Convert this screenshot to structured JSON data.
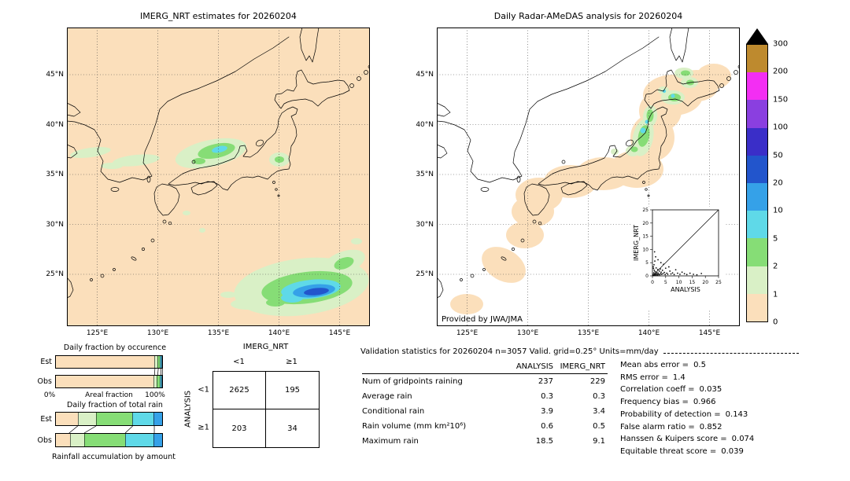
{
  "left_map": {
    "title": "IMERG_NRT estimates for 20260204",
    "x_ticks": [
      "125°E",
      "130°E",
      "135°E",
      "140°E",
      "145°E"
    ],
    "y_ticks": [
      "45°N",
      "40°N",
      "35°N",
      "30°N",
      "25°N"
    ]
  },
  "right_map": {
    "title": "Daily Radar-AMeDAS analysis for 20260204",
    "credit": "Provided by JWA/JMA",
    "x_ticks": [
      "125°E",
      "130°E",
      "135°E",
      "140°E",
      "145°E"
    ],
    "y_ticks": [
      "45°N",
      "40°N",
      "35°N",
      "30°N",
      "25°N"
    ]
  },
  "colorbar": {
    "labels_top_to_bottom": [
      "300",
      "200",
      "150",
      "100",
      "50",
      "20",
      "10",
      "5",
      "2",
      "1",
      "0"
    ],
    "colors_bottom_to_top": [
      "#FBDFBB",
      "#D9F0C6",
      "#86DD76",
      "#5FD9E8",
      "#35A1E8",
      "#2255CC",
      "#3A2EC8",
      "#8A3FE0",
      "#F32EF3",
      "#BE8A2E"
    ],
    "overflow_color": "#000000",
    "units": "mm/day"
  },
  "inset": {
    "xlabel": "ANALYSIS",
    "ylabel": "IMERG_NRT"
  },
  "occurrence": {
    "title": "Daily fraction by occurence",
    "row_labels": [
      "Est",
      "Obs"
    ],
    "axis_left": "0%",
    "axis_label": "Areal fraction",
    "axis_right": "100%"
  },
  "total_rain": {
    "title": "Daily fraction of total rain",
    "row_labels": [
      "Est",
      "Obs"
    ],
    "caption": "Rainfall accumulation by amount"
  },
  "contingency": {
    "matrix_col_title": "IMERG_NRT",
    "matrix_row_title": "ANALYSIS",
    "col_labels": [
      "<1",
      "≥1"
    ],
    "row_labels": [
      "<1",
      "≥1"
    ],
    "values": [
      [
        "2625",
        "195"
      ],
      [
        "203",
        "34"
      ]
    ]
  },
  "stats": {
    "title": "Validation statistics for 20260204  n=3057 Valid. grid=0.25° Units=mm/day",
    "col_headers": [
      "ANALYSIS",
      "IMERG_NRT"
    ],
    "rows": [
      {
        "label": "Num of gridpoints raining",
        "analysis": "237",
        "imerg": "229"
      },
      {
        "label": "Average rain",
        "analysis": "0.3",
        "imerg": "0.3"
      },
      {
        "label": "Conditional rain",
        "analysis": "3.9",
        "imerg": "3.4"
      },
      {
        "label": "Rain volume (mm km²10⁶)",
        "analysis": "0.6",
        "imerg": "0.5"
      },
      {
        "label": "Maximum rain",
        "analysis": "18.5",
        "imerg": "9.1"
      }
    ],
    "metrics": [
      {
        "label": "Mean abs error =",
        "value": "0.5"
      },
      {
        "label": "RMS error =",
        "value": "1.4"
      },
      {
        "label": "Correlation coeff =",
        "value": "0.035"
      },
      {
        "label": "Frequency bias =",
        "value": "0.966"
      },
      {
        "label": "Probability of detection =",
        "value": "0.143"
      },
      {
        "label": "False alarm ratio =",
        "value": "0.852"
      },
      {
        "label": "Hanssen & Kuipers score =",
        "value": "0.074"
      },
      {
        "label": "Equitable threat score =",
        "value": "0.039"
      }
    ]
  },
  "chart_data": [
    {
      "type": "heatmap",
      "title": "IMERG_NRT estimates for 20260204",
      "units": "mm/day",
      "levels": [
        0,
        1,
        2,
        5,
        10,
        20,
        50,
        100,
        150,
        200,
        300
      ],
      "lon_range": [
        "122.5E",
        "147.5E"
      ],
      "lat_range": [
        "20N",
        "49.5N"
      ],
      "features": [
        {
          "area": "Sea of Japan / central Honshu 133-137E 36-38N",
          "intensity_mm_day": "1-10"
        },
        {
          "area": "west of Korea Strait 123-131E 36-38N",
          "intensity_mm_day": "1-2"
        },
        {
          "area": "Kanto 140E 36.5N",
          "intensity_mm_day": "2-5"
        },
        {
          "area": "subtropical band SE of Japan 137-147E 21-26N",
          "intensity_mm_day": "2-50"
        }
      ]
    },
    {
      "type": "heatmap",
      "title": "Daily Radar-AMeDAS analysis for 20260204",
      "units": "mm/day",
      "coverage": "radar swath along Japanese archipelago, 0 mm/day background",
      "features": [
        {
          "area": "NW Tohoku coast 138.5-140.5E 37-41.5N",
          "intensity_mm_day": "1-20"
        },
        {
          "area": "W and N Hokkaido 140-145E 42-45.5N",
          "intensity_mm_day": "1-10"
        }
      ]
    },
    {
      "type": "scatter",
      "xlabel": "ANALYSIS",
      "ylabel": "IMERG_NRT",
      "xlim": [
        0,
        25
      ],
      "ylim": [
        0,
        25
      ],
      "tick_values": [
        0,
        5,
        10,
        15,
        20,
        25
      ],
      "identity_line": true,
      "points": [
        [
          0.2,
          0.1
        ],
        [
          0.3,
          0.5
        ],
        [
          0.4,
          0.2
        ],
        [
          0.5,
          1.1
        ],
        [
          0.6,
          0.3
        ],
        [
          0.7,
          2.1
        ],
        [
          0.8,
          0.6
        ],
        [
          0.9,
          0.2
        ],
        [
          1.0,
          1.6
        ],
        [
          1.1,
          0.4
        ],
        [
          1.3,
          0.8
        ],
        [
          1.4,
          3.0
        ],
        [
          1.5,
          0.3
        ],
        [
          1.7,
          1.2
        ],
        [
          1.8,
          0.6
        ],
        [
          2.0,
          0.3
        ],
        [
          2.0,
          2.4
        ],
        [
          2.2,
          1.0
        ],
        [
          2.4,
          0.5
        ],
        [
          2.6,
          1.8
        ],
        [
          2.8,
          0.4
        ],
        [
          3.0,
          2.6
        ],
        [
          3.1,
          0.9
        ],
        [
          3.3,
          1.4
        ],
        [
          3.5,
          0.6
        ],
        [
          3.8,
          2.1
        ],
        [
          4.0,
          0.8
        ],
        [
          4.2,
          4.4
        ],
        [
          4.5,
          1.3
        ],
        [
          4.8,
          0.5
        ],
        [
          5.0,
          2.9
        ],
        [
          5.4,
          1.0
        ],
        [
          5.8,
          0.6
        ],
        [
          6.2,
          3.4
        ],
        [
          6.6,
          1.8
        ],
        [
          7.0,
          0.7
        ],
        [
          7.6,
          1.1
        ],
        [
          8.2,
          0.5
        ],
        [
          8.8,
          2.3
        ],
        [
          9.5,
          1.0
        ],
        [
          10.4,
          0.6
        ],
        [
          11.2,
          1.4
        ],
        [
          12.1,
          0.8
        ],
        [
          13.0,
          0.5
        ],
        [
          14.2,
          1.0
        ],
        [
          15.5,
          0.6
        ],
        [
          16.8,
          0.4
        ],
        [
          18.5,
          0.9
        ],
        [
          0.4,
          2.8
        ],
        [
          0.6,
          4.2
        ],
        [
          0.9,
          5.6
        ],
        [
          1.2,
          7.2
        ],
        [
          0.8,
          9.1
        ],
        [
          2.1,
          6.1
        ],
        [
          3.2,
          5.0
        ],
        [
          0.3,
          3.4
        ]
      ]
    },
    {
      "type": "bar",
      "title": "Daily fraction by occurence",
      "orientation": "horizontal",
      "stacked": true,
      "unit": "%",
      "categories": [
        "Est",
        "Obs"
      ],
      "series": [
        {
          "name": "0-1",
          "color": "#FBDFBB",
          "values": [
            92.6,
            92.2
          ]
        },
        {
          "name": "1-2",
          "color": "#D9F0C6",
          "values": [
            3.1,
            3.0
          ]
        },
        {
          "name": "2-5",
          "color": "#86DD76",
          "values": [
            2.6,
            2.9
          ]
        },
        {
          "name": "5-10",
          "color": "#5FD9E8",
          "values": [
            1.2,
            1.4
          ]
        },
        {
          "name": "10-20",
          "color": "#35A1E8",
          "values": [
            0.5,
            0.5
          ]
        }
      ]
    },
    {
      "type": "bar",
      "title": "Daily fraction of total rain",
      "orientation": "horizontal",
      "stacked": true,
      "unit": "%",
      "categories": [
        "Est",
        "Obs"
      ],
      "series": [
        {
          "name": "0-1",
          "color": "#FBDFBB",
          "values": [
            21,
            13
          ]
        },
        {
          "name": "1-2",
          "color": "#D9F0C6",
          "values": [
            17,
            14
          ]
        },
        {
          "name": "2-5",
          "color": "#86DD76",
          "values": [
            34,
            38
          ]
        },
        {
          "name": "5-10",
          "color": "#5FD9E8",
          "values": [
            20,
            27
          ]
        },
        {
          "name": "10-20",
          "color": "#35A1E8",
          "values": [
            8,
            8
          ]
        }
      ]
    },
    {
      "type": "table",
      "title": "Contingency table (grid point counts)",
      "row_axis": "ANALYSIS",
      "col_axis": "IMERG_NRT",
      "col_labels": [
        "<1",
        "≥1"
      ],
      "row_labels": [
        "<1",
        "≥1"
      ],
      "values": [
        [
          2625,
          195
        ],
        [
          203,
          34
        ]
      ]
    },
    {
      "type": "table",
      "title": "Validation statistics for 20260204, n=3057, grid=0.25°, units mm/day",
      "columns": [
        "",
        "ANALYSIS",
        "IMERG_NRT"
      ],
      "rows": [
        [
          "Num of gridpoints raining",
          237,
          229
        ],
        [
          "Average rain",
          0.3,
          0.3
        ],
        [
          "Conditional rain",
          3.9,
          3.4
        ],
        [
          "Rain volume (mm km²10⁶)",
          0.6,
          0.5
        ],
        [
          "Maximum rain",
          18.5,
          9.1
        ]
      ]
    }
  ]
}
